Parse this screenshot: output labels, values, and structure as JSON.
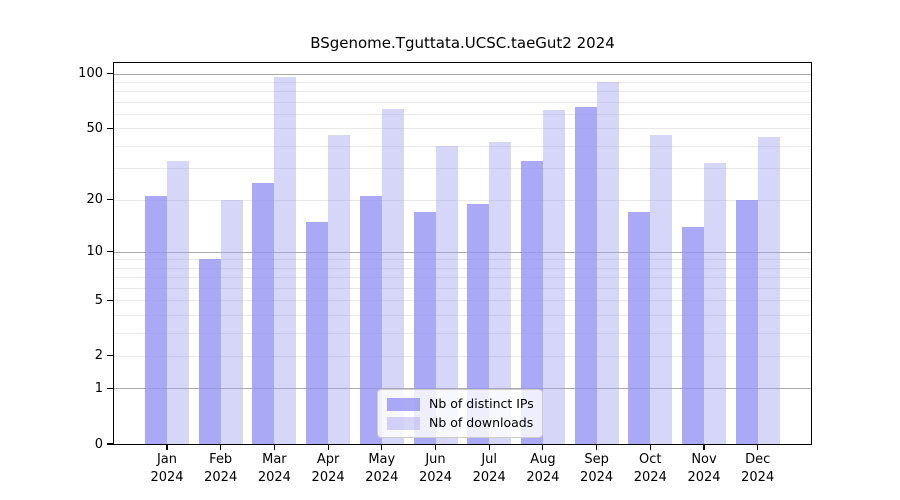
{
  "title": "BSgenome.Tguttata.UCSC.taeGut2 2024",
  "chart_data": {
    "type": "bar",
    "title": "BSgenome.Tguttata.UCSC.taeGut2 2024",
    "categories": [
      "Jan",
      "Feb",
      "Mar",
      "Apr",
      "May",
      "Jun",
      "Jul",
      "Aug",
      "Sep",
      "Oct",
      "Nov",
      "Dec"
    ],
    "x_year_label": "2024",
    "series": [
      {
        "name": "Nb of distinct IPs",
        "color": "rgba(148,148,244,0.8)",
        "values": [
          21,
          9,
          25,
          15,
          21,
          17,
          19,
          33,
          66,
          17,
          14,
          20
        ]
      },
      {
        "name": "Nb of downloads",
        "color": "rgba(158,158,238,0.42)",
        "values": [
          33,
          20,
          96,
          46,
          64,
          40,
          42,
          63,
          90,
          46,
          32,
          45
        ]
      }
    ],
    "yscale": "log1p",
    "yticks": [
      0,
      1,
      2,
      5,
      10,
      20,
      50,
      100
    ],
    "ylim": [
      0,
      114
    ],
    "grid": {
      "major": [
        1,
        10,
        100
      ],
      "minor": [
        2,
        3,
        4,
        5,
        6,
        7,
        8,
        9,
        20,
        30,
        40,
        50,
        60,
        70,
        80,
        90
      ],
      "major_color": "#ababab",
      "minor_color": "#e9e9e9"
    },
    "legend_position": "lower center"
  }
}
